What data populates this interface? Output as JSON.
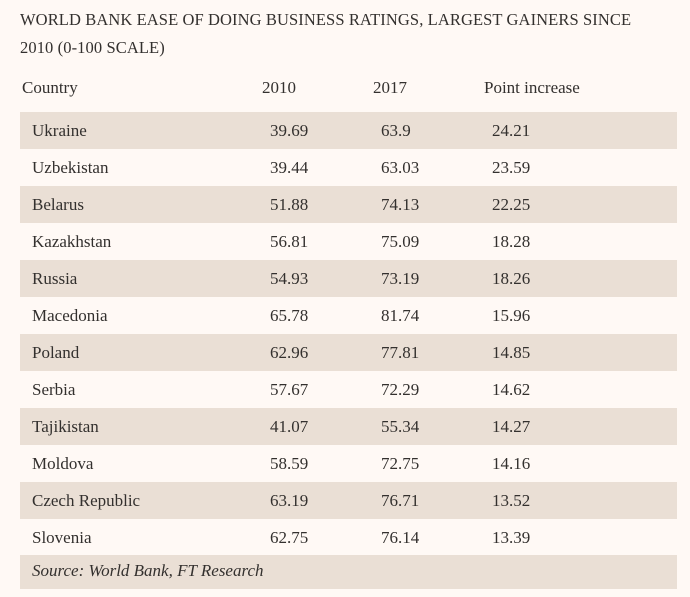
{
  "header": {
    "title_line1": "WORLD BANK EASE OF DOING BUSINESS RATINGS, LARGEST GAINERS SINCE",
    "title_line2": "2010 (0-100 SCALE)"
  },
  "table": {
    "columns": [
      "Country",
      "2010",
      "2017",
      "Point increase"
    ],
    "rows": [
      [
        "Ukraine",
        "39.69",
        "63.9",
        "24.21"
      ],
      [
        "Uzbekistan",
        "39.44",
        "63.03",
        "23.59"
      ],
      [
        "Belarus",
        "51.88",
        "74.13",
        "22.25"
      ],
      [
        "Kazakhstan",
        "56.81",
        "75.09",
        "18.28"
      ],
      [
        "Russia",
        "54.93",
        "73.19",
        "18.26"
      ],
      [
        "Macedonia",
        "65.78",
        "81.74",
        "15.96"
      ],
      [
        "Poland",
        "62.96",
        "77.81",
        "14.85"
      ],
      [
        "Serbia",
        "57.67",
        "72.29",
        "14.62"
      ],
      [
        "Tajikistan",
        "41.07",
        "55.34",
        "14.27"
      ],
      [
        "Moldova",
        "58.59",
        "72.75",
        "14.16"
      ],
      [
        "Czech Republic",
        "63.19",
        "76.71",
        "13.52"
      ],
      [
        "Slovenia",
        "62.75",
        "76.14",
        "13.39"
      ]
    ],
    "source": "Source: World Bank, FT Research"
  }
}
